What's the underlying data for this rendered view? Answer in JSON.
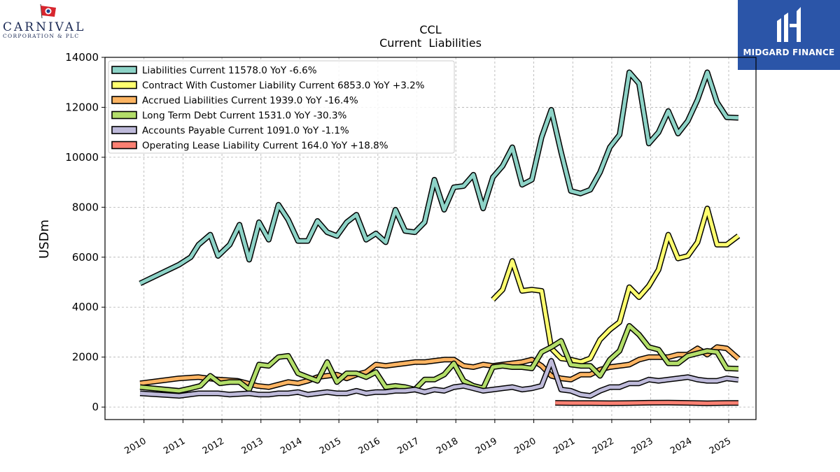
{
  "branding": {
    "left_logo_name": "CARNIVAL",
    "left_logo_sub": "CORPORATION & PLC",
    "right_logo_name": "MIDGARD FINANCE"
  },
  "colors": {
    "liabilities_current": "#8dd3c7",
    "contract_with_customer": "#ffff6f",
    "accrued_liabilities": "#fdb462",
    "long_term_debt": "#b3de69",
    "accounts_payable": "#bebada",
    "operating_lease": "#fb8072",
    "right_logo_bg": "#2b55a8"
  },
  "chart_data": {
    "type": "line",
    "title": "CCL",
    "subtitle": "Current  Liabilities",
    "ylabel": "USDm",
    "xlabel": "",
    "ylim": [
      -500,
      14000
    ],
    "xlim": [
      2009.0,
      2025.7
    ],
    "yticks": [
      0,
      2000,
      4000,
      6000,
      8000,
      10000,
      12000,
      14000
    ],
    "xticks": [
      "2010",
      "2011",
      "2012",
      "2013",
      "2014",
      "2015",
      "2016",
      "2017",
      "2018",
      "2019",
      "2020",
      "2021",
      "2022",
      "2023",
      "2024",
      "2025"
    ],
    "grid": true,
    "legend_position": "top-left",
    "series": [
      {
        "name": "Liabilities Current",
        "legend": "Liabilities Current  11578.0 YoY -6.6%",
        "color": "#8dd3c7",
        "points": [
          [
            2009.9,
            4950
          ],
          [
            2010.9,
            5700
          ],
          [
            2011.2,
            6000
          ],
          [
            2011.4,
            6500
          ],
          [
            2011.7,
            6900
          ],
          [
            2011.9,
            6050
          ],
          [
            2012.2,
            6500
          ],
          [
            2012.45,
            7300
          ],
          [
            2012.7,
            5900
          ],
          [
            2012.95,
            7400
          ],
          [
            2013.2,
            6700
          ],
          [
            2013.45,
            8100
          ],
          [
            2013.7,
            7500
          ],
          [
            2013.95,
            6650
          ],
          [
            2014.2,
            6650
          ],
          [
            2014.45,
            7450
          ],
          [
            2014.7,
            7000
          ],
          [
            2014.95,
            6850
          ],
          [
            2015.2,
            7400
          ],
          [
            2015.45,
            7700
          ],
          [
            2015.7,
            6700
          ],
          [
            2015.95,
            6950
          ],
          [
            2016.2,
            6600
          ],
          [
            2016.45,
            7900
          ],
          [
            2016.7,
            7050
          ],
          [
            2016.95,
            7000
          ],
          [
            2017.2,
            7400
          ],
          [
            2017.45,
            9100
          ],
          [
            2017.7,
            7900
          ],
          [
            2017.95,
            8800
          ],
          [
            2018.2,
            8850
          ],
          [
            2018.45,
            9300
          ],
          [
            2018.7,
            7950
          ],
          [
            2018.95,
            9200
          ],
          [
            2019.2,
            9650
          ],
          [
            2019.45,
            10400
          ],
          [
            2019.7,
            8900
          ],
          [
            2019.95,
            9100
          ],
          [
            2020.2,
            10800
          ],
          [
            2020.45,
            11900
          ],
          [
            2020.7,
            10200
          ],
          [
            2020.95,
            8650
          ],
          [
            2021.2,
            8550
          ],
          [
            2021.45,
            8700
          ],
          [
            2021.7,
            9400
          ],
          [
            2021.95,
            10400
          ],
          [
            2022.2,
            10900
          ],
          [
            2022.45,
            13400
          ],
          [
            2022.7,
            12950
          ],
          [
            2022.95,
            10550
          ],
          [
            2023.2,
            11000
          ],
          [
            2023.45,
            11850
          ],
          [
            2023.7,
            10950
          ],
          [
            2023.95,
            11450
          ],
          [
            2024.2,
            12300
          ],
          [
            2024.45,
            13400
          ],
          [
            2024.7,
            12200
          ],
          [
            2024.95,
            11600
          ],
          [
            2025.25,
            11578
          ]
        ]
      },
      {
        "name": "Contract With Customer Liability Current",
        "legend": "Contract With Customer Liability Current  6853.0 YoY +3.2%",
        "color": "#ffff6f",
        "points": [
          [
            2018.95,
            4300
          ],
          [
            2019.2,
            4700
          ],
          [
            2019.45,
            5850
          ],
          [
            2019.7,
            4650
          ],
          [
            2019.95,
            4700
          ],
          [
            2020.2,
            4650
          ],
          [
            2020.45,
            2350
          ],
          [
            2020.7,
            1950
          ],
          [
            2020.95,
            1900
          ],
          [
            2021.2,
            1800
          ],
          [
            2021.45,
            1950
          ],
          [
            2021.7,
            2700
          ],
          [
            2021.95,
            3100
          ],
          [
            2022.2,
            3400
          ],
          [
            2022.45,
            4800
          ],
          [
            2022.7,
            4400
          ],
          [
            2022.95,
            4850
          ],
          [
            2023.2,
            5500
          ],
          [
            2023.45,
            6900
          ],
          [
            2023.7,
            5950
          ],
          [
            2023.95,
            6050
          ],
          [
            2024.2,
            6600
          ],
          [
            2024.45,
            7950
          ],
          [
            2024.7,
            6500
          ],
          [
            2024.95,
            6500
          ],
          [
            2025.25,
            6853
          ]
        ]
      },
      {
        "name": "Accrued Liabilities Current",
        "legend": "Accrued Liabilities Current  1939.0 YoY -16.4%",
        "color": "#fdb462",
        "points": [
          [
            2009.9,
            950
          ],
          [
            2010.9,
            1150
          ],
          [
            2011.4,
            1200
          ],
          [
            2011.9,
            1100
          ],
          [
            2012.4,
            1050
          ],
          [
            2012.9,
            850
          ],
          [
            2013.2,
            800
          ],
          [
            2013.45,
            900
          ],
          [
            2013.7,
            1000
          ],
          [
            2013.95,
            950
          ],
          [
            2014.2,
            1050
          ],
          [
            2014.45,
            1200
          ],
          [
            2014.7,
            1250
          ],
          [
            2014.95,
            1300
          ],
          [
            2015.2,
            1150
          ],
          [
            2015.45,
            1300
          ],
          [
            2015.7,
            1400
          ],
          [
            2015.95,
            1700
          ],
          [
            2016.2,
            1650
          ],
          [
            2016.45,
            1700
          ],
          [
            2016.7,
            1750
          ],
          [
            2016.95,
            1800
          ],
          [
            2017.2,
            1800
          ],
          [
            2017.45,
            1850
          ],
          [
            2017.7,
            1900
          ],
          [
            2017.95,
            1900
          ],
          [
            2018.2,
            1650
          ],
          [
            2018.45,
            1600
          ],
          [
            2018.7,
            1700
          ],
          [
            2018.95,
            1650
          ],
          [
            2019.2,
            1700
          ],
          [
            2019.45,
            1750
          ],
          [
            2019.7,
            1800
          ],
          [
            2019.95,
            1900
          ],
          [
            2020.2,
            1650
          ],
          [
            2020.45,
            1250
          ],
          [
            2020.7,
            1150
          ],
          [
            2020.95,
            1100
          ],
          [
            2021.2,
            1300
          ],
          [
            2021.45,
            1300
          ],
          [
            2021.7,
            1500
          ],
          [
            2021.95,
            1600
          ],
          [
            2022.2,
            1650
          ],
          [
            2022.45,
            1700
          ],
          [
            2022.7,
            1900
          ],
          [
            2022.95,
            2000
          ],
          [
            2023.2,
            2000
          ],
          [
            2023.45,
            2000
          ],
          [
            2023.7,
            2100
          ],
          [
            2023.95,
            2100
          ],
          [
            2024.2,
            2350
          ],
          [
            2024.45,
            2100
          ],
          [
            2024.7,
            2400
          ],
          [
            2024.95,
            2350
          ],
          [
            2025.25,
            1939
          ]
        ]
      },
      {
        "name": "Long Term Debt Current",
        "legend": "Long Term Debt Current  1531.0 YoY -30.3%",
        "color": "#b3de69",
        "points": [
          [
            2009.9,
            800
          ],
          [
            2010.9,
            650
          ],
          [
            2011.2,
            750
          ],
          [
            2011.45,
            850
          ],
          [
            2011.7,
            1250
          ],
          [
            2011.95,
            950
          ],
          [
            2012.2,
            1000
          ],
          [
            2012.45,
            1000
          ],
          [
            2012.7,
            700
          ],
          [
            2012.95,
            1700
          ],
          [
            2013.2,
            1650
          ],
          [
            2013.45,
            2000
          ],
          [
            2013.7,
            2050
          ],
          [
            2013.95,
            1350
          ],
          [
            2014.2,
            1200
          ],
          [
            2014.45,
            1050
          ],
          [
            2014.7,
            1800
          ],
          [
            2014.95,
            1000
          ],
          [
            2015.2,
            1350
          ],
          [
            2015.45,
            1350
          ],
          [
            2015.7,
            1200
          ],
          [
            2015.95,
            1400
          ],
          [
            2016.2,
            800
          ],
          [
            2016.45,
            850
          ],
          [
            2016.7,
            800
          ],
          [
            2016.95,
            700
          ],
          [
            2017.2,
            1100
          ],
          [
            2017.45,
            1100
          ],
          [
            2017.7,
            1300
          ],
          [
            2017.95,
            1750
          ],
          [
            2018.2,
            1050
          ],
          [
            2018.45,
            850
          ],
          [
            2018.7,
            750
          ],
          [
            2018.95,
            1600
          ],
          [
            2019.2,
            1650
          ],
          [
            2019.45,
            1600
          ],
          [
            2019.7,
            1600
          ],
          [
            2019.95,
            1550
          ],
          [
            2020.2,
            2200
          ],
          [
            2020.45,
            2400
          ],
          [
            2020.7,
            2650
          ],
          [
            2020.95,
            1700
          ],
          [
            2021.2,
            1650
          ],
          [
            2021.45,
            1650
          ],
          [
            2021.7,
            1250
          ],
          [
            2021.95,
            1900
          ],
          [
            2022.2,
            2250
          ],
          [
            2022.45,
            3250
          ],
          [
            2022.7,
            2900
          ],
          [
            2022.95,
            2400
          ],
          [
            2023.2,
            2300
          ],
          [
            2023.45,
            1750
          ],
          [
            2023.7,
            1750
          ],
          [
            2023.95,
            2050
          ],
          [
            2024.2,
            2150
          ],
          [
            2024.45,
            2250
          ],
          [
            2024.7,
            2200
          ],
          [
            2024.95,
            1550
          ],
          [
            2025.25,
            1531
          ]
        ]
      },
      {
        "name": "Accounts Payable Current",
        "legend": "Accounts Payable Current  1091.0 YoY -1.1%",
        "color": "#bebada",
        "points": [
          [
            2009.9,
            550
          ],
          [
            2010.9,
            450
          ],
          [
            2011.4,
            550
          ],
          [
            2011.9,
            550
          ],
          [
            2012.2,
            500
          ],
          [
            2012.7,
            550
          ],
          [
            2012.95,
            500
          ],
          [
            2013.2,
            500
          ],
          [
            2013.45,
            550
          ],
          [
            2013.7,
            550
          ],
          [
            2013.95,
            600
          ],
          [
            2014.2,
            500
          ],
          [
            2014.45,
            550
          ],
          [
            2014.7,
            600
          ],
          [
            2014.95,
            550
          ],
          [
            2015.2,
            550
          ],
          [
            2015.45,
            650
          ],
          [
            2015.7,
            550
          ],
          [
            2015.95,
            600
          ],
          [
            2016.2,
            600
          ],
          [
            2016.45,
            650
          ],
          [
            2016.7,
            650
          ],
          [
            2016.95,
            700
          ],
          [
            2017.2,
            600
          ],
          [
            2017.45,
            700
          ],
          [
            2017.7,
            650
          ],
          [
            2017.95,
            800
          ],
          [
            2018.2,
            850
          ],
          [
            2018.45,
            750
          ],
          [
            2018.7,
            650
          ],
          [
            2018.95,
            700
          ],
          [
            2019.2,
            750
          ],
          [
            2019.45,
            800
          ],
          [
            2019.7,
            700
          ],
          [
            2019.95,
            750
          ],
          [
            2020.2,
            850
          ],
          [
            2020.45,
            1850
          ],
          [
            2020.7,
            700
          ],
          [
            2020.95,
            650
          ],
          [
            2021.2,
            500
          ],
          [
            2021.45,
            450
          ],
          [
            2021.7,
            650
          ],
          [
            2021.95,
            800
          ],
          [
            2022.2,
            800
          ],
          [
            2022.45,
            950
          ],
          [
            2022.7,
            950
          ],
          [
            2022.95,
            1100
          ],
          [
            2023.2,
            1050
          ],
          [
            2023.45,
            1100
          ],
          [
            2023.7,
            1150
          ],
          [
            2023.95,
            1200
          ],
          [
            2024.2,
            1100
          ],
          [
            2024.45,
            1050
          ],
          [
            2024.7,
            1050
          ],
          [
            2024.95,
            1150
          ],
          [
            2025.25,
            1091
          ]
        ]
      },
      {
        "name": "Operating Lease Liability Current",
        "legend": "Operating Lease Liability Current  164.0 YoY +18.8%",
        "color": "#fb8072",
        "points": [
          [
            2020.55,
            170
          ],
          [
            2020.95,
            160
          ],
          [
            2021.45,
            160
          ],
          [
            2021.95,
            155
          ],
          [
            2022.45,
            160
          ],
          [
            2022.95,
            175
          ],
          [
            2023.45,
            180
          ],
          [
            2023.95,
            170
          ],
          [
            2024.45,
            150
          ],
          [
            2024.95,
            165
          ],
          [
            2025.25,
            164
          ]
        ]
      }
    ]
  }
}
